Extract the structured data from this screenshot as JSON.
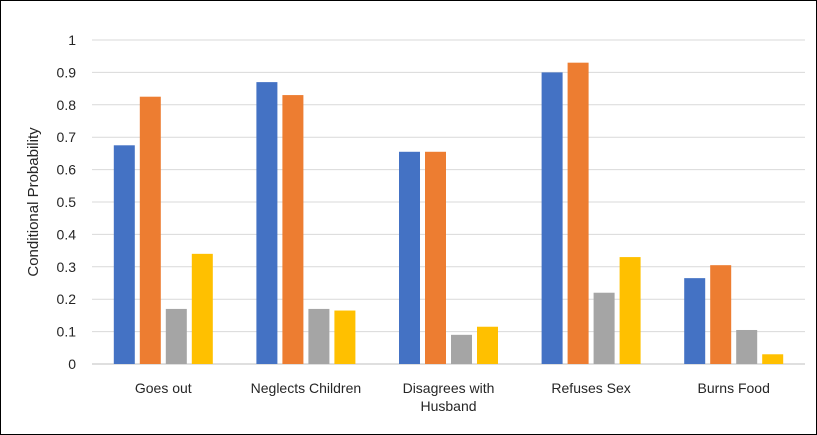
{
  "chart_data": {
    "type": "bar",
    "title": "",
    "xlabel": "",
    "ylabel": "Conditional Probability",
    "ylim": [
      0,
      1
    ],
    "yticks": [
      "0",
      "0.1",
      "0.2",
      "0.3",
      "0.4",
      "0.5",
      "0.6",
      "0.7",
      "0.8",
      "0.9",
      "1"
    ],
    "grid": true,
    "legend": "none",
    "categories": [
      [
        "Goes out"
      ],
      [
        "Neglects Children"
      ],
      [
        "Disagrees with",
        "Husband"
      ],
      [
        "Refuses Sex"
      ],
      [
        "Burns Food"
      ]
    ],
    "series": [
      {
        "color": "#4472C4",
        "values": [
          0.675,
          0.87,
          0.655,
          0.9,
          0.265
        ]
      },
      {
        "color": "#ED7D31",
        "values": [
          0.825,
          0.83,
          0.655,
          0.93,
          0.305
        ]
      },
      {
        "color": "#A5A5A5",
        "values": [
          0.17,
          0.17,
          0.09,
          0.22,
          0.105
        ]
      },
      {
        "color": "#FFC000",
        "values": [
          0.34,
          0.165,
          0.115,
          0.33,
          0.03
        ]
      }
    ],
    "gridline_color": "#D9D9D9",
    "axis_color": "#BFBFBF"
  }
}
